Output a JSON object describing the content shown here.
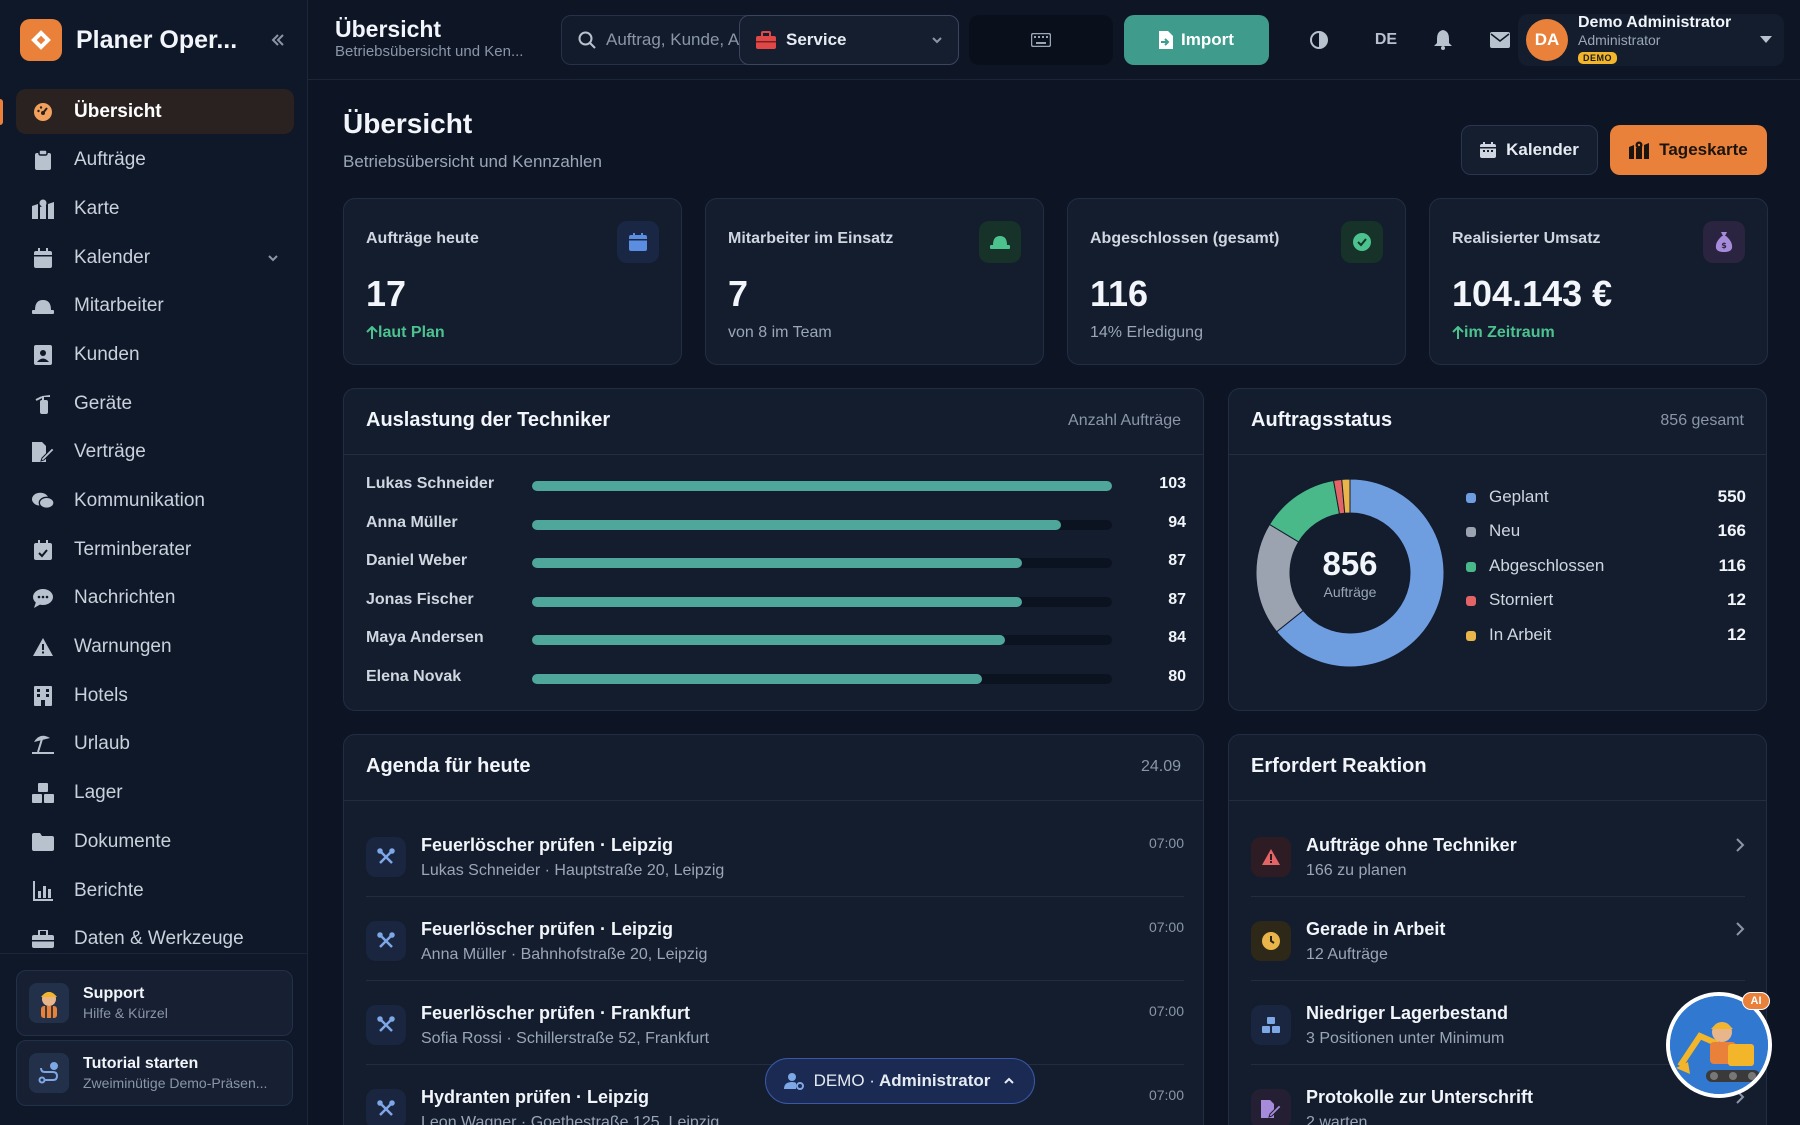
{
  "app": {
    "brand": "Planer Oper..."
  },
  "sidebar": {
    "items": [
      {
        "label": "Übersicht",
        "icon": "gauge-icon"
      },
      {
        "label": "Aufträge",
        "icon": "clipboard-icon"
      },
      {
        "label": "Karte",
        "icon": "map-icon"
      },
      {
        "label": "Kalender",
        "icon": "calendar-icon"
      },
      {
        "label": "Mitarbeiter",
        "icon": "hardhat-icon"
      },
      {
        "label": "Kunden",
        "icon": "contact-icon"
      },
      {
        "label": "Geräte",
        "icon": "extinguisher-icon"
      },
      {
        "label": "Verträge",
        "icon": "contract-icon"
      },
      {
        "label": "Kommunikation",
        "icon": "chat-icon"
      },
      {
        "label": "Terminberater",
        "icon": "calendar-check-icon"
      },
      {
        "label": "Nachrichten",
        "icon": "message-icon"
      },
      {
        "label": "Warnungen",
        "icon": "warning-icon"
      },
      {
        "label": "Hotels",
        "icon": "hotel-icon"
      },
      {
        "label": "Urlaub",
        "icon": "umbrella-beach-icon"
      },
      {
        "label": "Lager",
        "icon": "boxes-icon"
      },
      {
        "label": "Dokumente",
        "icon": "folder-icon"
      },
      {
        "label": "Berichte",
        "icon": "chart-icon"
      },
      {
        "label": "Daten & Werkzeuge",
        "icon": "toolbox-icon"
      }
    ],
    "support": {
      "title": "Support",
      "subtitle": "Hilfe & Kürzel"
    },
    "tutorial": {
      "title": "Tutorial starten",
      "subtitle": "Zweiminütige Demo-Präsen..."
    }
  },
  "topbar": {
    "title": "Übersicht",
    "subtitle": "Betriebsübersicht und Ken...",
    "search_placeholder": "Auftrag, Kunde, A",
    "service_label": "Service",
    "import_label": "Import",
    "language": "DE",
    "user": {
      "initials": "DA",
      "name": "Demo Administrator",
      "role": "Administrator",
      "badge": "DEMO"
    }
  },
  "page": {
    "title": "Übersicht",
    "subtitle": "Betriebsübersicht und Kennzahlen",
    "calendar_button": "Kalender",
    "daymap_button": "Tageskarte"
  },
  "kpis": [
    {
      "label": "Aufträge heute",
      "value": "17",
      "note": "laut Plan",
      "icon": "calendar-icon",
      "color": "#5b8ee0"
    },
    {
      "label": "Mitarbeiter im Einsatz",
      "value": "7",
      "note": "von 8 im Team",
      "icon": "hardhat-icon",
      "color": "#4cc28f"
    },
    {
      "label": "Abgeschlossen (gesamt)",
      "value": "116",
      "note": "14% Erledigung",
      "icon": "check-circle-icon",
      "color": "#4cc28f"
    },
    {
      "label": "Realisierter Umsatz",
      "value": "104.143 €",
      "note": "im Zeitraum",
      "icon": "money-bag-icon",
      "color": "#a78bdb"
    }
  ],
  "techniker": {
    "title": "Auslastung der Techniker",
    "meta": "Anzahl Aufträge",
    "max": 103,
    "rows": [
      {
        "name": "Lukas Schneider",
        "value": 103
      },
      {
        "name": "Anna Müller",
        "value": 94
      },
      {
        "name": "Daniel Weber",
        "value": 87
      },
      {
        "name": "Jonas Fischer",
        "value": 87
      },
      {
        "name": "Maya Andersen",
        "value": 84
      },
      {
        "name": "Elena Novak",
        "value": 80
      }
    ]
  },
  "status": {
    "title": "Auftragsstatus",
    "meta": "856 gesamt",
    "total": "856",
    "total_label": "Aufträge",
    "items": [
      {
        "name": "Geplant",
        "value": 550,
        "color": "#6f9ee0"
      },
      {
        "name": "Neu",
        "value": 166,
        "color": "#9ba3b0"
      },
      {
        "name": "Abgeschlossen",
        "value": 116,
        "color": "#49b989"
      },
      {
        "name": "Storniert",
        "value": 12,
        "color": "#e36464"
      },
      {
        "name": "In Arbeit",
        "value": 12,
        "color": "#e9b44a"
      }
    ]
  },
  "agenda": {
    "title": "Agenda für heute",
    "date": "24.09",
    "items": [
      {
        "title": "Feuerlöscher prüfen · Leipzig",
        "sub": "Lukas Schneider · Hauptstraße 20, Leipzig",
        "time": "07:00"
      },
      {
        "title": "Feuerlöscher prüfen · Leipzig",
        "sub": "Anna Müller · Bahnhofstraße 20, Leipzig",
        "time": "07:00"
      },
      {
        "title": "Feuerlöscher prüfen · Frankfurt",
        "sub": "Sofia Rossi · Schillerstraße 52, Frankfurt",
        "time": "07:00"
      },
      {
        "title": "Hydranten prüfen · Leipzig",
        "sub": "Leon Wagner · Goethestraße 125, Leipzig",
        "time": "07:00"
      }
    ]
  },
  "reaktion": {
    "title": "Erfordert Reaktion",
    "items": [
      {
        "title": "Aufträge ohne Techniker",
        "sub": "166 zu planen",
        "icon": "warning-icon",
        "color": "#e36464"
      },
      {
        "title": "Gerade in Arbeit",
        "sub": "12 Aufträge",
        "icon": "clock-icon",
        "color": "#e9b44a"
      },
      {
        "title": "Niedriger Lagerbestand",
        "sub": "3 Positionen unter Minimum",
        "icon": "boxes-icon",
        "color": "#7ea7e6"
      },
      {
        "title": "Protokolle zur Unterschrift",
        "sub": "2 warten",
        "icon": "signature-icon",
        "color": "#a78bdb"
      }
    ]
  },
  "demo_bar": {
    "prefix": "DEMO ·",
    "role": "Administrator"
  },
  "assistant": {
    "badge": "AI"
  }
}
